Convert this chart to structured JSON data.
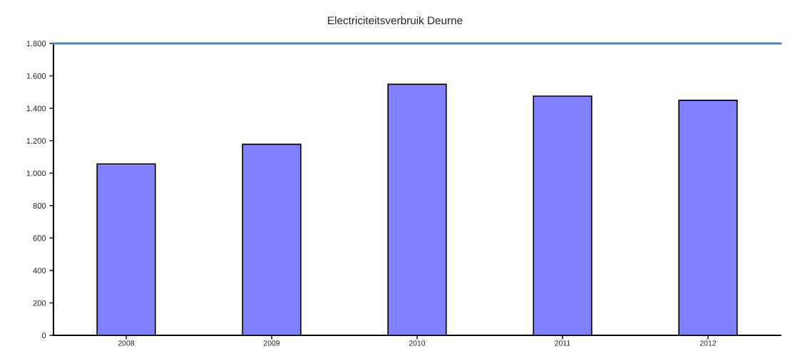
{
  "chart_data": {
    "type": "bar",
    "title": "Electriciteitsverbruik Deurne",
    "categories": [
      "2008",
      "2009",
      "2010",
      "2011",
      "2012"
    ],
    "values": [
      1057,
      1178,
      1548,
      1475,
      1449
    ],
    "color": "#8080ff",
    "ylim": [
      0,
      1800
    ],
    "yticks": [
      {
        "value": 0,
        "label": "0"
      },
      {
        "value": 200,
        "label": "200"
      },
      {
        "value": 400,
        "label": "400"
      },
      {
        "value": 600,
        "label": "600"
      },
      {
        "value": 800,
        "label": "800"
      },
      {
        "value": 1000,
        "label": "1.000"
      },
      {
        "value": 1200,
        "label": "1.200"
      },
      {
        "value": 1400,
        "label": "1.400"
      },
      {
        "value": 1600,
        "label": "1.600"
      },
      {
        "value": 1800,
        "label": "1.800"
      }
    ],
    "grid": false
  }
}
